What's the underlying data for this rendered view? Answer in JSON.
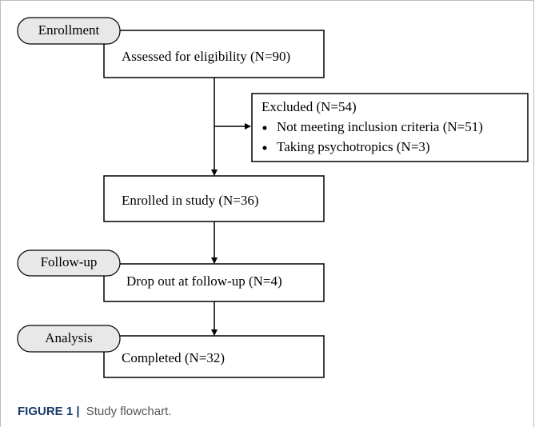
{
  "stages": [
    "Enrollment",
    "Follow-up",
    "Analysis"
  ],
  "nodes": [
    {
      "label": "Assessed for eligibility (N=90)"
    },
    {
      "label": "Excluded (N=54)",
      "items": [
        "Not meeting inclusion criteria (N=51)",
        "Taking psychotropics (N=3)"
      ]
    },
    {
      "label": "Enrolled in study (N=36)"
    },
    {
      "label": "Drop out at follow-up (N=4)"
    },
    {
      "label": "Completed (N=32)"
    }
  ],
  "caption": {
    "label": "FIGURE 1 |",
    "text": "Study flowchart."
  }
}
